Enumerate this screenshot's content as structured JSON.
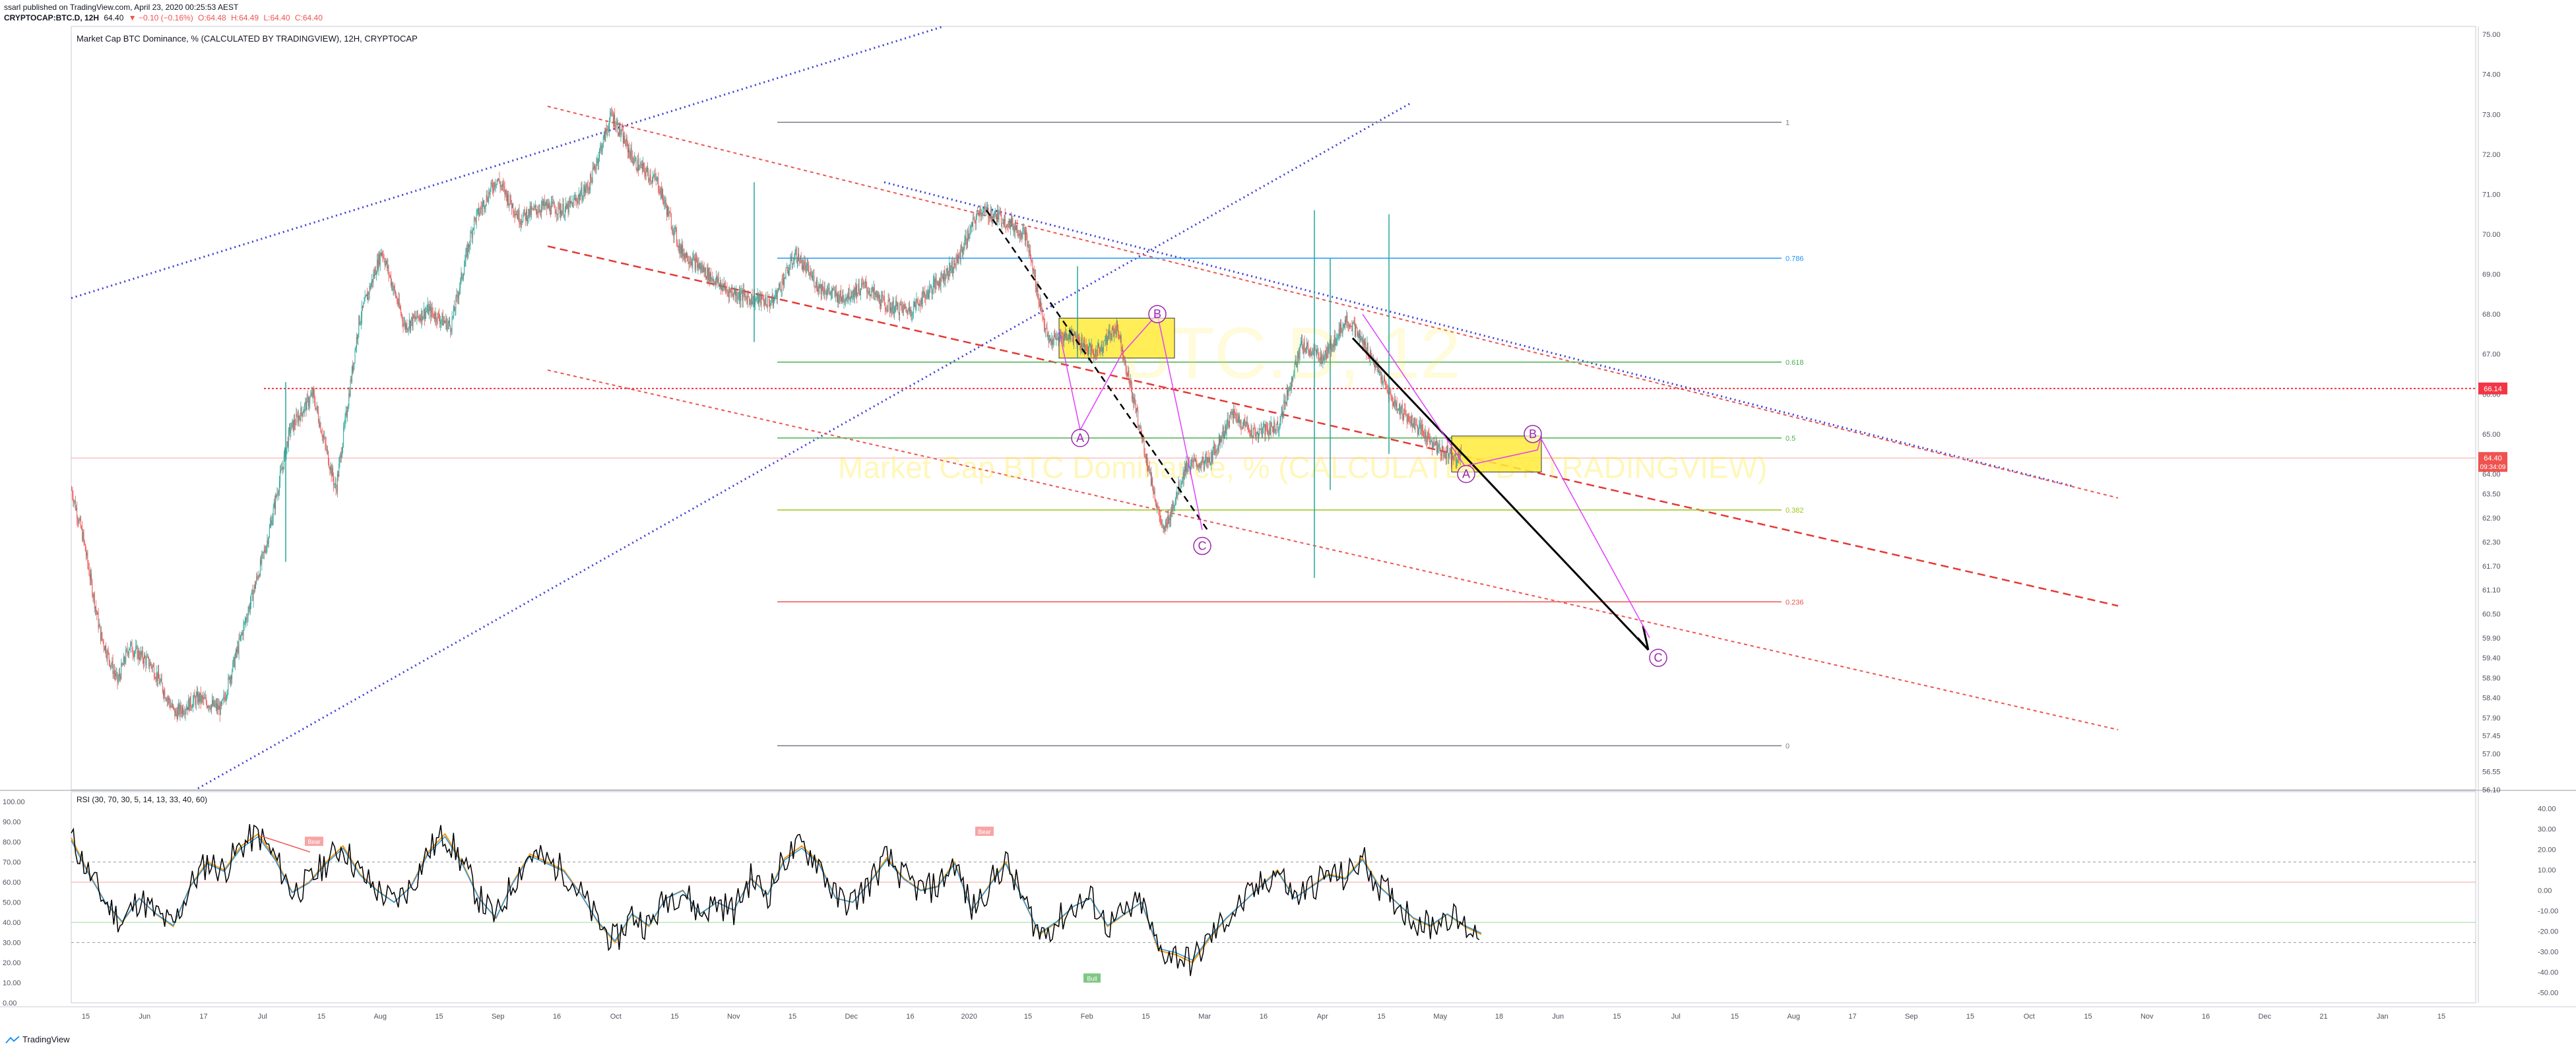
{
  "meta": {
    "published": "ssarl published on TradingView.com, April 23, 2020 00:25:53 AEST",
    "symbol_line": {
      "symbol": "CRYPTOCAP:BTC.D, 12H",
      "last": "64.40",
      "change": "▼ −0.10 (−0.16%)",
      "o": "O:64.48",
      "h": "H:64.49",
      "l": "L:64.40",
      "c": "C:64.40"
    },
    "study_title": "Market Cap BTC Dominance, % (CALCULATED BY TRADINGVIEW), 12H, CRYPTOCAP",
    "watermark": "Market Cap BTC Dominance, % (CALCULATED BY TRADINGVIEW)",
    "watermark_big": "BTC.D, 12",
    "brand": "TradingView",
    "colors": {
      "up": "#26a69a",
      "down": "#ef5350",
      "fib_box": "#ffeb3b",
      "wave": "#9c27b0",
      "channel": "#3f3fd8"
    }
  },
  "chart_data": [
    {
      "type": "candlestick",
      "title": "Market Cap BTC Dominance, % (CALCULATED BY TRADINGVIEW), 12H, CRYPTOCAP",
      "x_ticks": [
        "15",
        "Jun",
        "17",
        "Jul",
        "15",
        "Aug",
        "15",
        "Sep",
        "16",
        "Oct",
        "15",
        "Nov",
        "15",
        "Dec",
        "16",
        "2020",
        "15",
        "Feb",
        "15",
        "Mar",
        "16",
        "Apr",
        "15",
        "May",
        "18",
        "Jun",
        "15",
        "Jul",
        "15",
        "Aug",
        "17",
        "Sep",
        "15",
        "Oct",
        "15",
        "Nov",
        "16",
        "Dec",
        "21",
        "Jan",
        "15"
      ],
      "y_ticks": [
        "75.00",
        "74.00",
        "73.00",
        "72.00",
        "71.00",
        "70.00",
        "69.00",
        "68.00",
        "67.00",
        "66.00",
        "65.00",
        "64.00",
        "63.50",
        "62.90",
        "62.30",
        "61.70",
        "61.10",
        "60.50",
        "59.90",
        "59.40",
        "58.90",
        "58.40",
        "57.90",
        "57.45",
        "57.00",
        "56.55",
        "56.10"
      ],
      "last_price": "64.40",
      "countdown": "09:34:09",
      "horizontal_level": "66.14",
      "fib_levels": [
        {
          "level": "1",
          "value": 72.8
        },
        {
          "level": "0.786",
          "value": 69.4
        },
        {
          "level": "0.618",
          "value": 66.8
        },
        {
          "level": "0.5",
          "value": 64.9
        },
        {
          "level": "0.382",
          "value": 63.1
        },
        {
          "level": "0.236",
          "value": 60.8
        },
        {
          "level": "0",
          "value": 57.2
        }
      ],
      "wave_labels": [
        "A",
        "B",
        "C",
        "A",
        "B",
        "C"
      ],
      "price_path": [
        [
          0,
          63.6
        ],
        [
          2,
          62.4
        ],
        [
          5,
          60.0
        ],
        [
          8,
          58.8
        ],
        [
          10,
          59.7
        ],
        [
          14,
          59.2
        ],
        [
          18,
          58.0
        ],
        [
          22,
          58.4
        ],
        [
          26,
          58.1
        ],
        [
          30,
          60.2
        ],
        [
          34,
          62.3
        ],
        [
          38,
          65.1
        ],
        [
          42,
          66.0
        ],
        [
          46,
          63.6
        ],
        [
          50,
          67.8
        ],
        [
          54,
          69.6
        ],
        [
          58,
          67.7
        ],
        [
          62,
          68.1
        ],
        [
          66,
          67.7
        ],
        [
          70,
          70.3
        ],
        [
          74,
          71.4
        ],
        [
          78,
          70.4
        ],
        [
          82,
          70.7
        ],
        [
          86,
          70.6
        ],
        [
          90,
          71.2
        ],
        [
          94,
          73.0
        ],
        [
          98,
          71.8
        ],
        [
          102,
          71.3
        ],
        [
          106,
          69.6
        ],
        [
          110,
          69.1
        ],
        [
          114,
          68.6
        ],
        [
          118,
          68.4
        ],
        [
          122,
          68.3
        ],
        [
          126,
          69.5
        ],
        [
          130,
          68.7
        ],
        [
          134,
          68.4
        ],
        [
          138,
          68.7
        ],
        [
          142,
          68.2
        ],
        [
          146,
          68.1
        ],
        [
          150,
          68.7
        ],
        [
          154,
          69.3
        ],
        [
          158,
          70.6
        ],
        [
          162,
          70.4
        ],
        [
          166,
          70.0
        ],
        [
          170,
          67.3
        ],
        [
          174,
          67.5
        ],
        [
          178,
          67.0
        ],
        [
          182,
          67.7
        ],
        [
          186,
          65.1
        ],
        [
          190,
          62.5
        ],
        [
          194,
          64.2
        ],
        [
          198,
          64.3
        ],
        [
          202,
          65.5
        ],
        [
          206,
          65.0
        ],
        [
          210,
          65.2
        ],
        [
          214,
          67.2
        ],
        [
          218,
          66.9
        ],
        [
          222,
          67.9
        ],
        [
          226,
          67.0
        ],
        [
          230,
          65.8
        ],
        [
          234,
          65.2
        ],
        [
          238,
          64.6
        ],
        [
          242,
          64.4
        ]
      ],
      "rsi": {
        "title": "RSI (30, 70, 30, 5, 14, 13, 33, 40, 60)",
        "left_ticks": [
          "100.00",
          "90.00",
          "80.00",
          "70.00",
          "60.00",
          "50.00",
          "40.00",
          "30.00",
          "20.00",
          "10.00",
          "0.00"
        ],
        "right_ticks": [
          "40.00",
          "30.00",
          "20.00",
          "10.00",
          "0.00",
          "-10.00",
          "-20.00",
          "-30.00",
          "-40.00",
          "-50.00"
        ],
        "bear_label": "Bear",
        "bull_label": "Bull",
        "values": [
          82,
          65,
          50,
          40,
          52,
          44,
          38,
          58,
          70,
          66,
          78,
          84,
          72,
          55,
          60,
          70,
          78,
          64,
          56,
          50,
          58,
          75,
          84,
          70,
          52,
          42,
          60,
          74,
          70,
          66,
          54,
          40,
          30,
          44,
          38,
          52,
          56,
          44,
          50,
          46,
          62,
          54,
          72,
          78,
          70,
          52,
          50,
          60,
          72,
          62,
          56,
          58,
          70,
          46,
          58,
          70,
          52,
          34,
          40,
          48,
          52,
          38,
          44,
          50,
          26,
          24,
          20,
          32,
          42,
          50,
          58,
          66,
          52,
          58,
          64,
          62,
          72,
          58,
          50,
          42,
          38,
          44,
          38,
          34
        ]
      }
    }
  ]
}
